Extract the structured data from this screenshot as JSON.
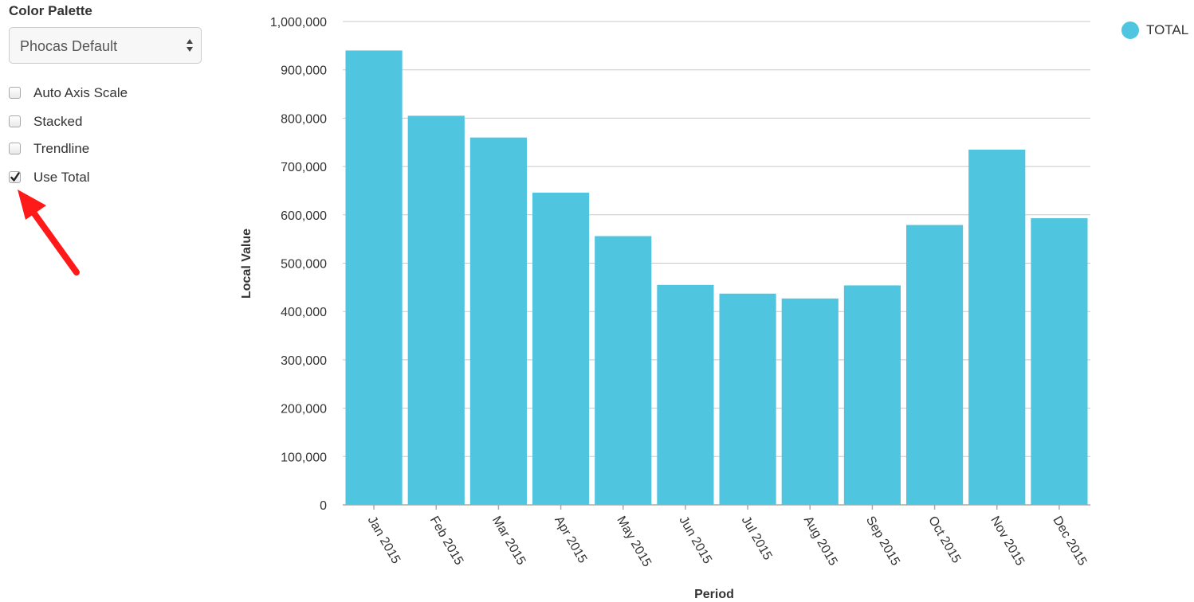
{
  "sidebar": {
    "title": "Color Palette",
    "palette_select": {
      "value": "Phocas Default",
      "icon": "select-updown-arrows-icon"
    },
    "options": [
      {
        "label": "Auto Axis Scale",
        "checked": false
      },
      {
        "label": "Stacked",
        "checked": false
      },
      {
        "label": "Trendline",
        "checked": false
      },
      {
        "label": "Use Total",
        "checked": true
      }
    ],
    "annotation": {
      "icon": "red-arrow-icon",
      "color": "#ff1a1a"
    }
  },
  "colors": {
    "bar": "#4fc5e0",
    "gridline": "#c8c8c8",
    "axis": "#aaaaaa"
  },
  "chart_data": {
    "type": "bar",
    "title": "",
    "xlabel": "Period",
    "ylabel": "Local Value",
    "ylim": [
      0,
      1000000
    ],
    "yticks": [
      0,
      100000,
      200000,
      300000,
      400000,
      500000,
      600000,
      700000,
      800000,
      900000,
      1000000
    ],
    "ytick_labels": [
      "0",
      "100,000",
      "200,000",
      "300,000",
      "400,000",
      "500,000",
      "600,000",
      "700,000",
      "800,000",
      "900,000",
      "1,000,000"
    ],
    "grid": true,
    "legend_position": "top-right",
    "categories": [
      "Jan 2015",
      "Feb 2015",
      "Mar 2015",
      "Apr 2015",
      "May 2015",
      "Jun 2015",
      "Jul 2015",
      "Aug 2015",
      "Sep 2015",
      "Oct 2015",
      "Nov 2015",
      "Dec 2015"
    ],
    "series": [
      {
        "name": "TOTAL",
        "color": "#4fc5e0",
        "values": [
          940000,
          805000,
          760000,
          646000,
          556000,
          455000,
          437000,
          427000,
          454000,
          579000,
          735000,
          593000
        ]
      }
    ]
  }
}
